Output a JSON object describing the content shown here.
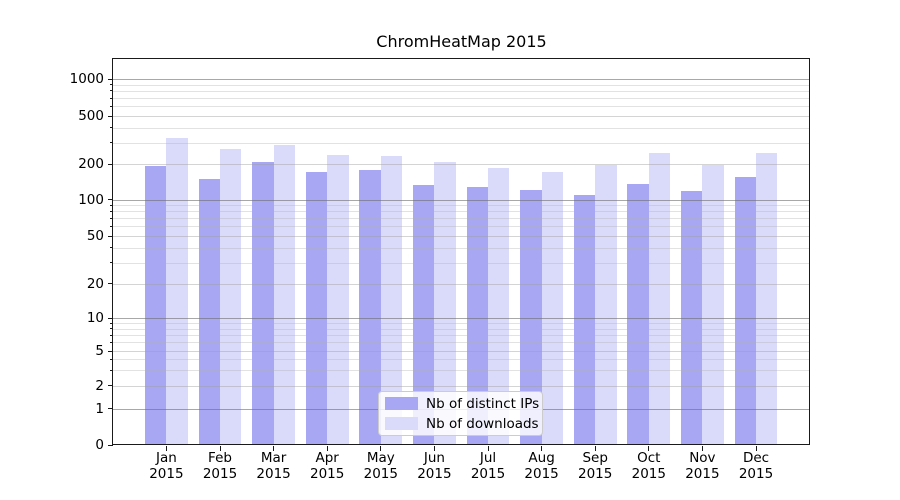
{
  "title": "ChromHeatMap 2015",
  "chart_data": {
    "type": "bar",
    "title": "ChromHeatMap 2015",
    "categories": [
      "Jan 2015",
      "Feb 2015",
      "Mar 2015",
      "Apr 2015",
      "May 2015",
      "Jun 2015",
      "Jul 2015",
      "Aug 2015",
      "Sep 2015",
      "Oct 2015",
      "Nov 2015",
      "Dec 2015"
    ],
    "series": [
      {
        "name": "Nb of distinct IPs",
        "color": "#a7a7f3",
        "values": [
          193,
          150,
          209,
          170,
          179,
          134,
          129,
          120,
          109,
          136,
          119,
          155
        ]
      },
      {
        "name": "Nb of downloads",
        "color": "#dadafa",
        "values": [
          332,
          269,
          287,
          237,
          234,
          209,
          184,
          170,
          196,
          249,
          196,
          246
        ]
      }
    ],
    "xlabel": "",
    "ylabel": "",
    "yscale": "symlog",
    "y_ticks": [
      0,
      1,
      2,
      5,
      10,
      20,
      50,
      100,
      200,
      500,
      1000
    ],
    "ylim": [
      0,
      1400
    ],
    "grid": true,
    "legend_position": "lower center"
  },
  "x_axis": {
    "months": [
      "Jan",
      "Feb",
      "Mar",
      "Apr",
      "May",
      "Jun",
      "Jul",
      "Aug",
      "Sep",
      "Oct",
      "Nov",
      "Dec"
    ],
    "year": "2015"
  },
  "y_axis": {
    "tick_labels": [
      "0",
      "1",
      "2",
      "5",
      "10",
      "20",
      "50",
      "100",
      "200",
      "500",
      "1000"
    ]
  },
  "legend": {
    "items": [
      {
        "label": "Nb of distinct IPs",
        "color": "#a7a7f3"
      },
      {
        "label": "Nb of downloads",
        "color": "#dadafa"
      }
    ]
  },
  "colors": {
    "bar_dark": "#a7a7f3",
    "bar_light": "#dadafa",
    "legend_border": "#cccccc",
    "axis": "#1a1a1a"
  }
}
